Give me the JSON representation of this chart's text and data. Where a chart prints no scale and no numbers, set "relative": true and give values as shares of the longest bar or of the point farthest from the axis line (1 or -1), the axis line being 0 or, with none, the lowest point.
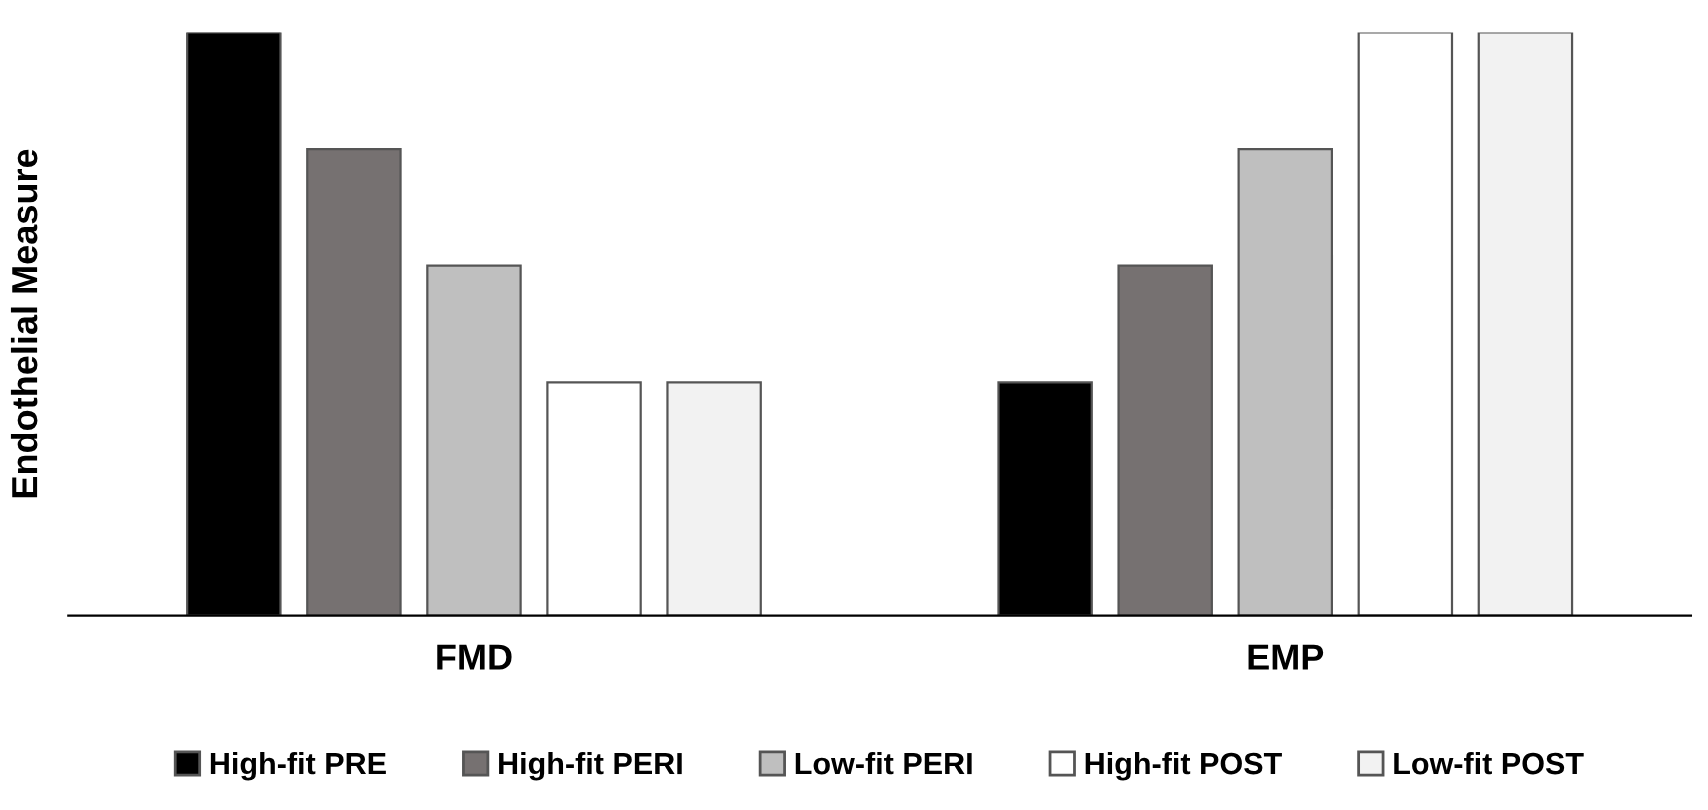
{
  "chart_data": {
    "type": "bar",
    "relative": true,
    "ylabel": "Endothelial Measure",
    "categories": [
      "FMD",
      "EMP"
    ],
    "series": [
      {
        "name": "High-fit PRE",
        "color": "#000000",
        "values": [
          1,
          0.4
        ]
      },
      {
        "name": "High-fit PERI",
        "color": "#767171",
        "values": [
          0.8,
          0.6
        ]
      },
      {
        "name": "Low-fit PERI",
        "color": "#bfbfbf",
        "values": [
          0.6,
          0.8
        ]
      },
      {
        "name": "High-fit POST",
        "color": "#ffffff",
        "values": [
          0.4,
          1
        ]
      },
      {
        "name": "Low-fit POST",
        "color": "#f2f2f2",
        "values": [
          0.4,
          1
        ]
      }
    ],
    "legend": "bottom",
    "grid": false
  }
}
